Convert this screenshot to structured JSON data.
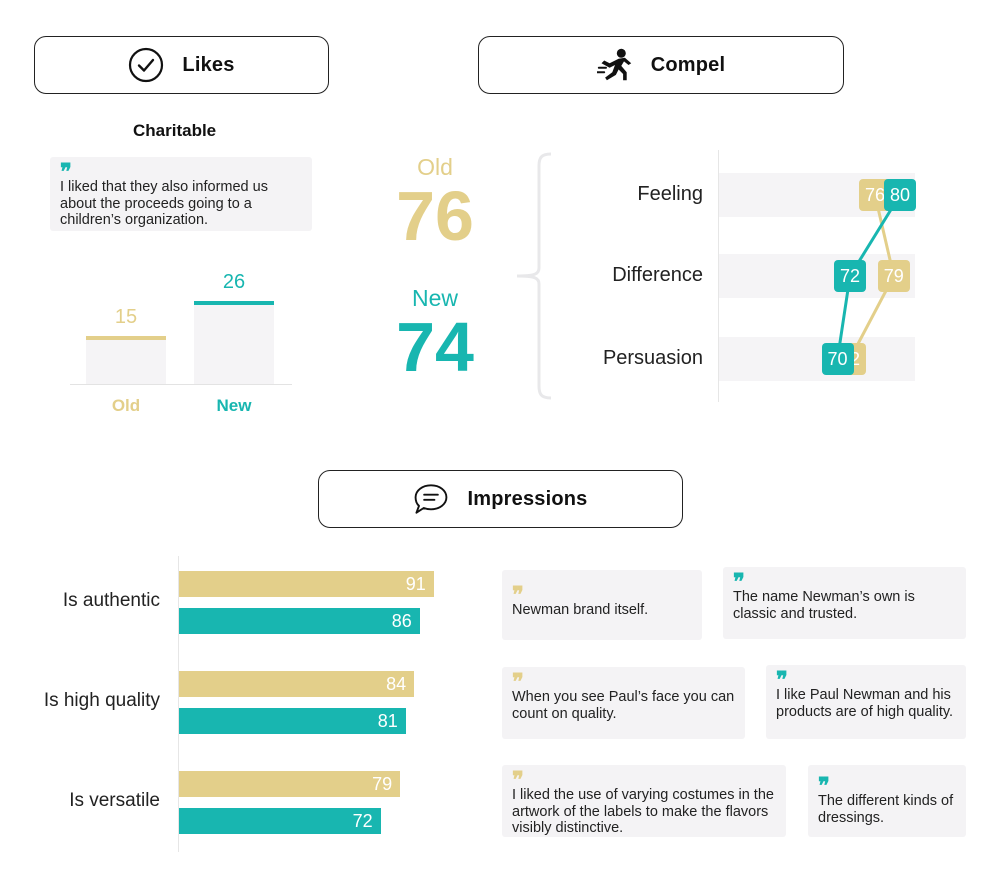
{
  "colors": {
    "old": "#e3cf8a",
    "new": "#18b6b0",
    "band": "#f5f4f6"
  },
  "headers": {
    "likes": {
      "label": "Likes",
      "icon": "check-circle-icon"
    },
    "compel": {
      "label": "Compel",
      "icon": "running-person-icon"
    },
    "impressions": {
      "label": "Impressions",
      "icon": "speech-bubble-icon"
    }
  },
  "likes": {
    "title": "Charitable",
    "quote": "I liked that they also informed us about the proceeds going to a children’s organization."
  },
  "compel_scores": {
    "old_label": "Old",
    "old_value": "76",
    "new_label": "New",
    "new_value": "74"
  },
  "impressions_quotes": [
    {
      "text": "Newman brand itself.",
      "mark": "gold"
    },
    {
      "text": "The name Newman’s own is classic and trusted.",
      "mark": "teal"
    },
    {
      "text": "When you see Paul’s face you can count on quality.",
      "mark": "gold"
    },
    {
      "text": "I like Paul Newman and his products are of high quality.",
      "mark": "teal"
    },
    {
      "text": "I liked the use of varying costumes in the artwork of the labels to make the flavors visibly distinctive.",
      "mark": "gold"
    },
    {
      "text": "The different kinds of dressings.",
      "mark": "teal"
    }
  ],
  "chart_data": [
    {
      "type": "bar",
      "categories": [
        "Old",
        "New"
      ],
      "values": [
        15,
        26
      ],
      "title": "Charitable"
    },
    {
      "type": "line",
      "categories": [
        "Feeling",
        "Difference",
        "Persuasion"
      ],
      "series": [
        {
          "name": "Old",
          "values": [
            76,
            79,
            72
          ]
        },
        {
          "name": "New",
          "values": [
            80,
            72,
            70
          ]
        }
      ],
      "xlim": [
        0,
        100
      ]
    },
    {
      "type": "bar",
      "orientation": "horizontal",
      "categories": [
        "Is authentic",
        "Is high quality",
        "Is versatile"
      ],
      "series": [
        {
          "name": "Old",
          "values": [
            91,
            84,
            79
          ]
        },
        {
          "name": "New",
          "values": [
            86,
            81,
            72
          ]
        }
      ]
    }
  ]
}
